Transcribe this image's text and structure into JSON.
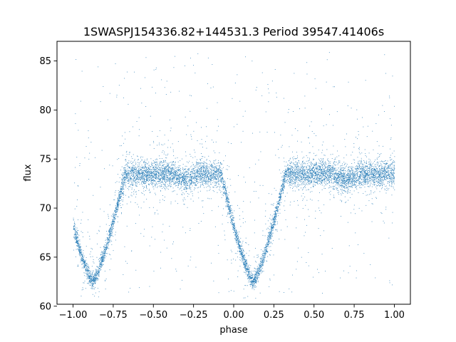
{
  "chart_data": {
    "type": "scatter",
    "title": "1SWASPJ154336.82+144531.3 Period 39547.41406s",
    "xlabel": "phase",
    "ylabel": "flux",
    "xlim": [
      -1.1,
      1.1
    ],
    "ylim": [
      60.2,
      87.0
    ],
    "xticks": [
      -1.0,
      -0.75,
      -0.5,
      -0.25,
      0.0,
      0.25,
      0.5,
      0.75,
      1.0
    ],
    "xtick_labels": [
      "−1.00",
      "−0.75",
      "−0.50",
      "−0.25",
      "0.00",
      "0.25",
      "0.50",
      "0.75",
      "1.00"
    ],
    "yticks": [
      60,
      65,
      70,
      75,
      80,
      85
    ],
    "ytick_labels": [
      "60",
      "65",
      "70",
      "75",
      "80",
      "85"
    ],
    "grid": false,
    "legend": "none",
    "point_color": "#1f77b4",
    "series": [
      {
        "baseline_flux": 73.5,
        "baseline_scatter": 0.9,
        "phase_range": [
          -1.0,
          1.0
        ],
        "primary_eclipses": [
          {
            "center_phase": -0.88,
            "min_flux": 62.5,
            "half_width": 0.2
          },
          {
            "center_phase": 0.12,
            "min_flux": 62.5,
            "half_width": 0.2
          }
        ],
        "secondary_dip_phases": [
          -0.3,
          0.7
        ],
        "outlier_range": [
          61.0,
          86.0
        ]
      }
    ]
  },
  "colors": {
    "background": "#ffffff",
    "axes": "#000000",
    "points": "#1f77b4"
  }
}
